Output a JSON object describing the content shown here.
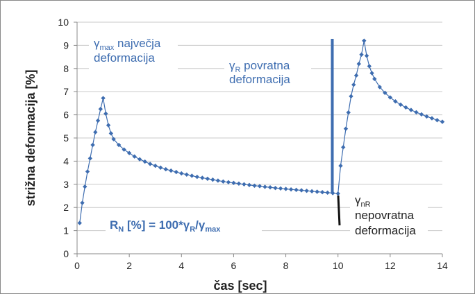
{
  "chart_data": {
    "type": "scatter",
    "xlabel": "čas [sec]",
    "ylabel": "strižna deformacija [%]",
    "xlim": [
      0,
      14
    ],
    "xticks": [
      0,
      2,
      4,
      6,
      8,
      10,
      12,
      14
    ],
    "ylim": [
      0,
      10
    ],
    "yticks": [
      0,
      1,
      2,
      3,
      4,
      5,
      6,
      7,
      8,
      9,
      10
    ],
    "grid": true,
    "x": [
      0.1,
      0.2,
      0.3,
      0.4,
      0.5,
      0.6,
      0.7,
      0.8,
      0.9,
      1.0,
      1.1,
      1.2,
      1.3,
      1.4,
      1.6,
      1.8,
      2.0,
      2.2,
      2.4,
      2.6,
      2.8,
      3.0,
      3.2,
      3.4,
      3.6,
      3.8,
      4.0,
      4.2,
      4.4,
      4.6,
      4.8,
      5.0,
      5.2,
      5.4,
      5.6,
      5.8,
      6.0,
      6.2,
      6.4,
      6.6,
      6.8,
      7.0,
      7.2,
      7.4,
      7.6,
      7.8,
      8.0,
      8.2,
      8.4,
      8.6,
      8.8,
      9.0,
      9.2,
      9.4,
      9.6,
      9.8,
      10.0,
      10.1,
      10.2,
      10.3,
      10.4,
      10.5,
      10.6,
      10.7,
      10.8,
      10.9,
      11.0,
      11.1,
      11.2,
      11.3,
      11.4,
      11.6,
      11.8,
      12.0,
      12.2,
      12.4,
      12.6,
      12.8,
      13.0,
      13.2,
      13.4,
      13.6,
      13.8,
      14.0
    ],
    "series": [
      {
        "color": "#3e6db0",
        "values": [
          1.33,
          2.2,
          2.9,
          3.55,
          4.12,
          4.7,
          5.25,
          5.75,
          6.25,
          6.72,
          6.05,
          5.55,
          5.2,
          4.95,
          4.7,
          4.5,
          4.35,
          4.2,
          4.08,
          3.98,
          3.88,
          3.8,
          3.72,
          3.65,
          3.59,
          3.53,
          3.47,
          3.42,
          3.37,
          3.32,
          3.28,
          3.24,
          3.2,
          3.16,
          3.12,
          3.09,
          3.06,
          3.03,
          3.0,
          2.97,
          2.94,
          2.92,
          2.89,
          2.87,
          2.84,
          2.82,
          2.8,
          2.78,
          2.76,
          2.74,
          2.72,
          2.7,
          2.68,
          2.66,
          2.64,
          2.62,
          2.6,
          3.8,
          4.6,
          5.4,
          6.1,
          6.8,
          7.3,
          7.7,
          8.2,
          8.6,
          9.2,
          8.55,
          8.1,
          7.8,
          7.55,
          7.2,
          6.95,
          6.75,
          6.58,
          6.44,
          6.32,
          6.21,
          6.11,
          6.02,
          5.93,
          5.85,
          5.77,
          5.7
        ]
      }
    ],
    "annotations": [
      {
        "lines": [
          [
            {
              "t": "γ"
            },
            {
              "t": "max",
              "sub": true
            },
            {
              "t": " največja"
            }
          ],
          [
            {
              "t": "deformacija"
            }
          ]
        ]
      },
      {
        "lines": [
          [
            {
              "t": "γ"
            },
            {
              "t": "R",
              "sub": true
            },
            {
              "t": " povratna"
            }
          ],
          [
            {
              "t": "deformacija"
            }
          ]
        ]
      },
      {
        "lines": [
          [
            {
              "t": "γ"
            },
            {
              "t": "nR",
              "sub": true
            }
          ],
          [
            {
              "t": "nepovratna"
            }
          ],
          [
            {
              "t": "deformacija"
            }
          ]
        ]
      },
      {
        "lines": [
          [
            {
              "t": "R"
            },
            {
              "t": "N",
              "sub": true
            },
            {
              "t": " [%] = 100*γ"
            },
            {
              "t": "R",
              "sub": true
            },
            {
              "t": "/γ"
            },
            {
              "t": "max",
              "sub": true
            }
          ]
        ]
      }
    ]
  }
}
